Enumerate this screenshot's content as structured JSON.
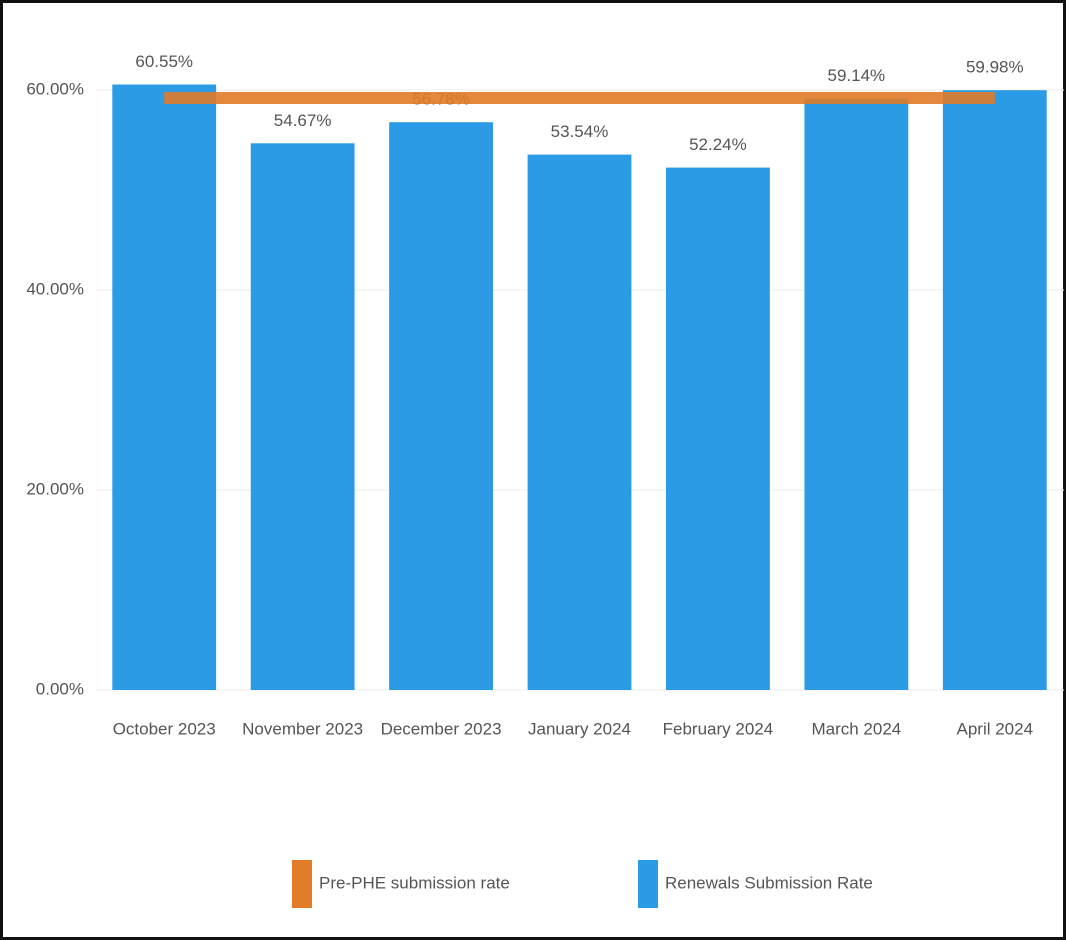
{
  "chart_data": {
    "type": "bar",
    "categories": [
      "October 2023",
      "November 2023",
      "December 2023",
      "January 2024",
      "February 2024",
      "March 2024",
      "April 2024"
    ],
    "series": [
      {
        "name": "Pre-PHE submission rate",
        "color": "#e07b28",
        "type": "line",
        "values": [
          59.2,
          59.2,
          59.2,
          59.2,
          59.2,
          59.2,
          59.2
        ]
      },
      {
        "name": "Renewals Submission Rate",
        "color": "#2b9be6",
        "type": "bar",
        "values": [
          60.55,
          54.67,
          56.78,
          53.54,
          52.24,
          59.14,
          59.98
        ],
        "value_labels": [
          "60.55%",
          "54.67%",
          "56.78%",
          "53.54%",
          "52.24%",
          "59.14%",
          "59.98%"
        ]
      }
    ],
    "ylim": [
      0,
      62
    ],
    "yticks": [
      {
        "value": 0,
        "label": "0.00%"
      },
      {
        "value": 20,
        "label": "20.00%"
      },
      {
        "value": 40,
        "label": "40.00%"
      },
      {
        "value": 60,
        "label": "60.00%"
      }
    ],
    "grid": true,
    "legend": "bottom"
  }
}
